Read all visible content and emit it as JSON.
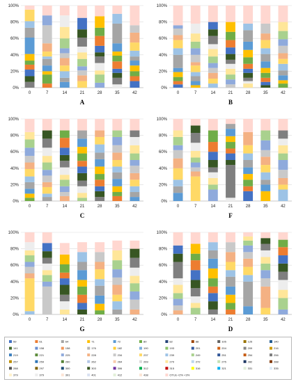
{
  "chart_data": [
    {
      "type": "bar",
      "panel": "A",
      "categories": [
        "0",
        "7",
        "14",
        "21",
        "28",
        "35",
        "42"
      ],
      "ylim": [
        0,
        100
      ],
      "yticks": [
        "0%",
        "20%",
        "40%",
        "60%",
        "80%",
        "100%"
      ],
      "stacks": [
        [
          7,
          7,
          8,
          6,
          5,
          8,
          20,
          12,
          8,
          14,
          5
        ],
        [
          5,
          11,
          4,
          7,
          8,
          3,
          6,
          10,
          22,
          12,
          12
        ],
        [
          7,
          5,
          8,
          7,
          9,
          6,
          6,
          12,
          14,
          14,
          12
        ],
        [
          8,
          7,
          6,
          5,
          9,
          8,
          7,
          11,
          10,
          14,
          15
        ],
        [
          6,
          10,
          5,
          9,
          8,
          5,
          8,
          12,
          10,
          14,
          13
        ],
        [
          4,
          8,
          6,
          5,
          9,
          7,
          5,
          10,
          24,
          12,
          10
        ],
        [
          8,
          6,
          6,
          7,
          6,
          5,
          7,
          10,
          12,
          9,
          24
        ]
      ]
    },
    {
      "type": "bar",
      "panel": "B",
      "categories": [
        "0",
        "7",
        "14",
        "21",
        "28",
        "35",
        "42"
      ],
      "ylim": [
        0,
        100
      ],
      "yticks": [
        "0%",
        "20%",
        "40%",
        "60%",
        "80%",
        "100%"
      ],
      "stacks": [
        [
          4,
          4,
          5,
          6,
          5,
          16,
          8,
          10,
          6,
          8,
          4,
          24
        ],
        [
          3,
          5,
          6,
          5,
          8,
          4,
          9,
          8,
          8,
          10,
          12,
          22
        ],
        [
          5,
          6,
          7,
          6,
          6,
          8,
          9,
          6,
          10,
          8,
          9,
          20
        ],
        [
          4,
          6,
          6,
          7,
          6,
          5,
          7,
          8,
          9,
          10,
          12,
          20
        ],
        [
          5,
          3,
          4,
          6,
          5,
          6,
          8,
          9,
          10,
          14,
          8,
          22
        ],
        [
          3,
          4,
          5,
          6,
          6,
          8,
          9,
          7,
          10,
          8,
          12,
          22
        ],
        [
          5,
          4,
          6,
          6,
          8,
          6,
          7,
          9,
          8,
          10,
          11,
          20
        ]
      ]
    },
    {
      "type": "bar",
      "panel": "C",
      "categories": [
        "0",
        "7",
        "14",
        "21",
        "28",
        "35",
        "42"
      ],
      "ylim": [
        0,
        100
      ],
      "yticks": [
        "0%",
        "20%",
        "40%",
        "60%",
        "80%",
        "100%"
      ],
      "stacks": [
        [
          4,
          5,
          6,
          8,
          7,
          9,
          8,
          8,
          10,
          10,
          9,
          16
        ],
        [
          5,
          4,
          8,
          6,
          8,
          7,
          9,
          8,
          10,
          11,
          10,
          14
        ],
        [
          6,
          5,
          7,
          8,
          6,
          9,
          8,
          7,
          9,
          12,
          9,
          14
        ],
        [
          4,
          6,
          8,
          7,
          9,
          8,
          7,
          9,
          8,
          10,
          10,
          14
        ],
        [
          5,
          7,
          6,
          8,
          7,
          9,
          9,
          8,
          10,
          9,
          8,
          14
        ],
        [
          6,
          5,
          7,
          9,
          8,
          7,
          8,
          9,
          9,
          10,
          8,
          14
        ],
        [
          5,
          6,
          7,
          8,
          8,
          9,
          7,
          8,
          10,
          10,
          8,
          14
        ]
      ]
    },
    {
      "type": "bar",
      "panel": "F",
      "categories": [
        "0",
        "7",
        "14",
        "21",
        "28",
        "35",
        "42"
      ],
      "ylim": [
        0,
        100
      ],
      "yticks": [
        "0%",
        "20%",
        "40%",
        "60%",
        "80%",
        "100%"
      ],
      "stacks": [
        [
          10,
          8,
          8,
          14,
          12,
          10,
          6,
          10,
          8,
          14
        ],
        [
          30,
          6,
          5,
          6,
          6,
          8,
          10,
          12,
          9,
          8
        ],
        [
          14,
          6,
          8,
          7,
          6,
          9,
          10,
          12,
          14,
          14
        ],
        [
          4,
          40,
          6,
          8,
          6,
          8,
          7,
          9,
          6,
          6
        ],
        [
          12,
          6,
          8,
          7,
          8,
          9,
          8,
          10,
          16,
          16
        ],
        [
          12,
          8,
          6,
          9,
          9,
          10,
          8,
          12,
          12,
          14
        ],
        [
          14,
          6,
          8,
          10,
          12,
          8,
          10,
          8,
          10,
          14
        ]
      ]
    },
    {
      "type": "bar",
      "panel": "G",
      "categories": [
        "0",
        "7",
        "14",
        "21",
        "28",
        "35",
        "42"
      ],
      "ylim": [
        0,
        100
      ],
      "yticks": [
        "0%",
        "20%",
        "40%",
        "60%",
        "80%",
        "100%"
      ],
      "stacks": [
        [
          4,
          40,
          6,
          8,
          6,
          8,
          6,
          10,
          12
        ],
        [
          34,
          6,
          8,
          6,
          8,
          7,
          8,
          10,
          13
        ],
        [
          6,
          10,
          8,
          12,
          8,
          7,
          10,
          12,
          14
        ],
        [
          6,
          8,
          10,
          10,
          8,
          12,
          10,
          12,
          12
        ],
        [
          5,
          8,
          10,
          12,
          8,
          12,
          9,
          12,
          12
        ],
        [
          6,
          10,
          8,
          12,
          9,
          10,
          11,
          12,
          12
        ],
        [
          6,
          12,
          10,
          10,
          9,
          10,
          12,
          11,
          10
        ]
      ]
    },
    {
      "type": "bar",
      "panel": "D",
      "categories": [
        "0",
        "7",
        "14",
        "21",
        "28",
        "35",
        "42"
      ],
      "ylim": [
        0,
        100
      ],
      "yticks": [
        "0%",
        "20%",
        "40%",
        "60%",
        "80%",
        "100%"
      ],
      "stacks": [
        [
          5,
          6,
          8,
          7,
          10,
          8,
          20,
          10,
          10,
          16
        ],
        [
          8,
          6,
          8,
          10,
          10,
          12,
          12,
          8,
          12,
          14
        ],
        [
          6,
          10,
          10,
          8,
          10,
          12,
          12,
          10,
          10,
          12
        ],
        [
          6,
          8,
          10,
          10,
          12,
          8,
          10,
          12,
          12,
          12
        ],
        [
          10,
          30,
          8,
          10,
          10,
          8,
          8,
          6,
          5,
          5
        ],
        [
          8,
          26,
          10,
          10,
          8,
          8,
          8,
          8,
          7,
          7
        ],
        [
          6,
          14,
          10,
          12,
          10,
          10,
          10,
          10,
          9,
          9
        ]
      ]
    }
  ],
  "legend": {
    "items": [
      {
        "label": "59",
        "color": "#4472c4"
      },
      {
        "label": "61",
        "color": "#ed7d31"
      },
      {
        "label": "64",
        "color": "#a5a5a5"
      },
      {
        "label": "71",
        "color": "#ffc000"
      },
      {
        "label": "72",
        "color": "#5b9bd5"
      },
      {
        "label": "80",
        "color": "#70ad47"
      },
      {
        "label": "82",
        "color": "#264478"
      },
      {
        "label": "88",
        "color": "#9e480e"
      },
      {
        "label": "105",
        "color": "#636363"
      },
      {
        "label": "125",
        "color": "#997300"
      },
      {
        "label": "140",
        "color": "#255e91"
      },
      {
        "label": "141",
        "color": "#43682b"
      },
      {
        "label": "158",
        "color": "#698ed0"
      },
      {
        "label": "158",
        "color": "#f1975a"
      },
      {
        "label": "176",
        "color": "#b7b7b7"
      },
      {
        "label": "182",
        "color": "#ffcd33"
      },
      {
        "label": "190",
        "color": "#7cafdd"
      },
      {
        "label": "193",
        "color": "#8cc168"
      },
      {
        "label": "201",
        "color": "#335aa1"
      },
      {
        "label": "204",
        "color": "#d26012"
      },
      {
        "label": "209",
        "color": "#848484"
      },
      {
        "label": "216",
        "color": "#cc9a00"
      },
      {
        "label": "219",
        "color": "#3a7ebd"
      },
      {
        "label": "221",
        "color": "#5a8a39"
      },
      {
        "label": "225",
        "color": "#8faadc"
      },
      {
        "label": "228",
        "color": "#f4b183"
      },
      {
        "label": "234",
        "color": "#c9c9c9"
      },
      {
        "label": "237",
        "color": "#ffd966"
      },
      {
        "label": "239",
        "color": "#9dc3e6"
      },
      {
        "label": "249",
        "color": "#a9d18e"
      },
      {
        "label": "251",
        "color": "#2f5597"
      },
      {
        "label": "254",
        "color": "#c55a11"
      },
      {
        "label": "256",
        "color": "#7b7b7b"
      },
      {
        "label": "257",
        "color": "#bf9000"
      },
      {
        "label": "259",
        "color": "#2e75b6"
      },
      {
        "label": "260",
        "color": "#548235"
      },
      {
        "label": "262",
        "color": "#b4c7e7"
      },
      {
        "label": "264",
        "color": "#f8cbad"
      },
      {
        "label": "269",
        "color": "#dbdbdb"
      },
      {
        "label": "270",
        "color": "#ffe699"
      },
      {
        "label": "272",
        "color": "#bdd7ee"
      },
      {
        "label": "275",
        "color": "#c5e0b4"
      },
      {
        "label": "282",
        "color": "#1f3864"
      },
      {
        "label": "288",
        "color": "#843c0c"
      },
      {
        "label": "288",
        "color": "#525252"
      },
      {
        "label": "297",
        "color": "#7f6000"
      },
      {
        "label": "300",
        "color": "#1f4e79"
      },
      {
        "label": "303",
        "color": "#385723"
      },
      {
        "label": "306",
        "color": "#7030a0"
      },
      {
        "label": "312",
        "color": "#00b050"
      },
      {
        "label": "315",
        "color": "#c00000"
      },
      {
        "label": "316",
        "color": "#ffff00"
      },
      {
        "label": "321",
        "color": "#00b0f0"
      },
      {
        "label": "331",
        "color": "#e2efda"
      },
      {
        "label": "335",
        "color": "#ddebf7"
      },
      {
        "label": "379",
        "color": "#fff2cc"
      },
      {
        "label": "379",
        "color": "#ededed"
      },
      {
        "label": "391",
        "color": "#fce4d6"
      },
      {
        "label": "401",
        "color": "#d9e1f2"
      },
      {
        "label": "412",
        "color": "#e2f0d9"
      },
      {
        "label": "438",
        "color": "#fbe5d6"
      },
      {
        "label": "OTUs <2% <3%",
        "color": "#ffd7d0"
      }
    ]
  },
  "colors": {
    "rest": "#ffd7d0",
    "palette": [
      "#7f7f7f",
      "#375623",
      "#4472c4",
      "#ed7d31",
      "#70ad47",
      "#ffc000",
      "#5b9bd5",
      "#a5a5a5",
      "#9dc3e6",
      "#ffd966",
      "#f4b183",
      "#c9c9c9",
      "#8faadc",
      "#a9d18e",
      "#ffe699",
      "#ededed"
    ]
  }
}
